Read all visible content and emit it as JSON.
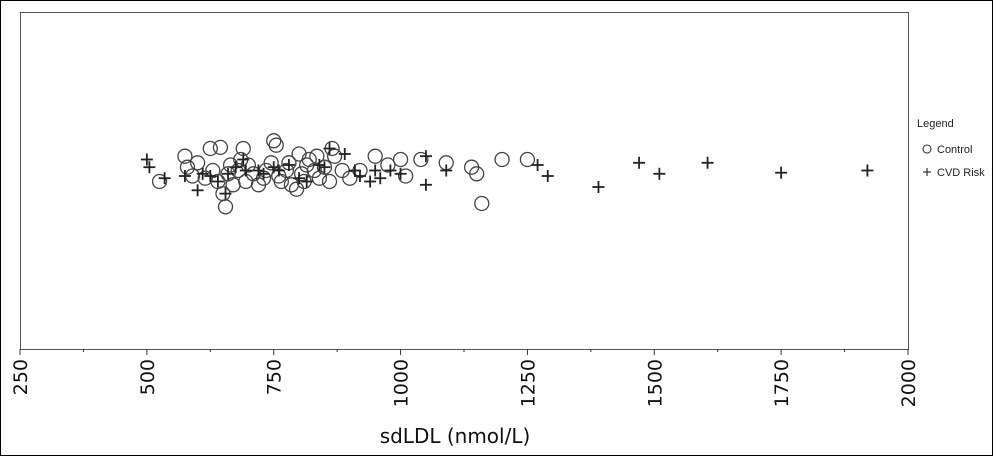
{
  "chart_data": {
    "type": "scatter",
    "xlabel": "sdLDL (nmol/L)",
    "ylabel": "",
    "xlim": [
      250,
      2000
    ],
    "xticks": [
      "250",
      "500",
      "750",
      "1000",
      "1250",
      "1500",
      "1750",
      "2000"
    ],
    "grid": false,
    "legend": {
      "title": "Legend",
      "placement": "right",
      "entries": [
        "Control",
        "CVD Risk"
      ]
    },
    "series": [
      {
        "name": "Control",
        "marker": "circle",
        "points": [
          [
            525,
            0.05
          ],
          [
            575,
            0.28
          ],
          [
            580,
            0.18
          ],
          [
            590,
            0.1
          ],
          [
            600,
            0.22
          ],
          [
            615,
            0.08
          ],
          [
            625,
            0.35
          ],
          [
            630,
            0.15
          ],
          [
            640,
            0.05
          ],
          [
            645,
            0.36
          ],
          [
            650,
            -0.06
          ],
          [
            655,
            -0.18
          ],
          [
            660,
            0.12
          ],
          [
            665,
            0.2
          ],
          [
            670,
            0.02
          ],
          [
            680,
            0.15
          ],
          [
            685,
            0.25
          ],
          [
            690,
            0.35
          ],
          [
            695,
            0.05
          ],
          [
            700,
            0.2
          ],
          [
            710,
            0.12
          ],
          [
            720,
            0.02
          ],
          [
            730,
            0.08
          ],
          [
            735,
            0.15
          ],
          [
            745,
            0.22
          ],
          [
            750,
            0.42
          ],
          [
            755,
            0.38
          ],
          [
            760,
            0.1
          ],
          [
            765,
            0.05
          ],
          [
            775,
            0.15
          ],
          [
            780,
            0.22
          ],
          [
            785,
            0.02
          ],
          [
            795,
            -0.02
          ],
          [
            800,
            0.3
          ],
          [
            805,
            0.12
          ],
          [
            810,
            0.05
          ],
          [
            815,
            0.2
          ],
          [
            820,
            0.25
          ],
          [
            830,
            0.15
          ],
          [
            835,
            0.28
          ],
          [
            840,
            0.08
          ],
          [
            850,
            0.18
          ],
          [
            860,
            0.05
          ],
          [
            865,
            0.35
          ],
          [
            870,
            0.28
          ],
          [
            885,
            0.15
          ],
          [
            900,
            0.08
          ],
          [
            920,
            0.15
          ],
          [
            950,
            0.28
          ],
          [
            975,
            0.2
          ],
          [
            1000,
            0.25
          ],
          [
            1010,
            0.1
          ],
          [
            1040,
            0.25
          ],
          [
            1090,
            0.22
          ],
          [
            1140,
            0.18
          ],
          [
            1150,
            0.12
          ],
          [
            1160,
            -0.15
          ],
          [
            1200,
            0.25
          ],
          [
            1250,
            0.25
          ]
        ]
      },
      {
        "name": "CVD Risk",
        "marker": "plus",
        "points": [
          [
            500,
            0.25
          ],
          [
            505,
            0.18
          ],
          [
            535,
            0.08
          ],
          [
            575,
            0.1
          ],
          [
            600,
            -0.03
          ],
          [
            610,
            0.12
          ],
          [
            625,
            0.1
          ],
          [
            640,
            0.05
          ],
          [
            655,
            -0.06
          ],
          [
            660,
            0.12
          ],
          [
            675,
            0.18
          ],
          [
            690,
            0.25
          ],
          [
            695,
            0.15
          ],
          [
            720,
            0.15
          ],
          [
            730,
            0.12
          ],
          [
            750,
            0.18
          ],
          [
            760,
            0.15
          ],
          [
            780,
            0.2
          ],
          [
            800,
            0.08
          ],
          [
            815,
            0.05
          ],
          [
            840,
            0.2
          ],
          [
            850,
            0.18
          ],
          [
            860,
            0.35
          ],
          [
            890,
            0.3
          ],
          [
            910,
            0.15
          ],
          [
            920,
            0.1
          ],
          [
            940,
            0.05
          ],
          [
            950,
            0.15
          ],
          [
            960,
            0.08
          ],
          [
            980,
            0.15
          ],
          [
            1000,
            0.12
          ],
          [
            1050,
            0.28
          ],
          [
            1050,
            0.02
          ],
          [
            1090,
            0.15
          ],
          [
            1270,
            0.2
          ],
          [
            1290,
            0.1
          ],
          [
            1390,
            0.0
          ],
          [
            1470,
            0.22
          ],
          [
            1510,
            0.12
          ],
          [
            1605,
            0.22
          ],
          [
            1750,
            0.13
          ],
          [
            1920,
            0.15
          ]
        ]
      }
    ]
  }
}
